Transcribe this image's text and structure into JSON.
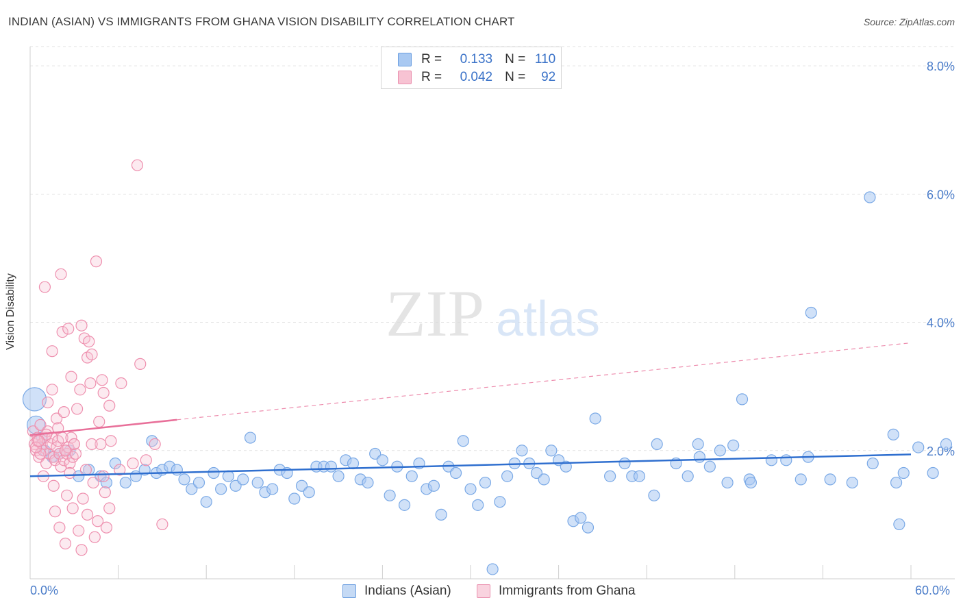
{
  "title": "INDIAN (ASIAN) VS IMMIGRANTS FROM GHANA VISION DISABILITY CORRELATION CHART",
  "source": "Source: ZipAtlas.com",
  "watermark": {
    "zip": "ZIP",
    "atlas": "atlas"
  },
  "legend": {
    "r_key": "R =",
    "n_key": "N =",
    "rows": [
      {
        "r": "0.133",
        "n": "110",
        "color": "#a9c9f2",
        "border": "#6b9ee0"
      },
      {
        "r": "0.042",
        "n": "92",
        "color": "#f7c3d3",
        "border": "#ea8fae"
      }
    ]
  },
  "bottom_legend": {
    "items": [
      {
        "label": "Indians (Asian)",
        "color": "#c5daf5",
        "border": "#6b9ee0"
      },
      {
        "label": "Immigrants from Ghana",
        "color": "#f9d3df",
        "border": "#ea8fae"
      }
    ]
  },
  "chart_data": {
    "type": "scatter",
    "title": "INDIAN (ASIAN) VS IMMIGRANTS FROM GHANA VISION DISABILITY CORRELATION CHART",
    "xlabel": "",
    "ylabel": "Vision Disability",
    "xlim": [
      0,
      60
    ],
    "ylim": [
      0,
      8.3
    ],
    "x_tick_labels": [
      "0.0%",
      "60.0%"
    ],
    "y_ticks": [
      2,
      4,
      6,
      8
    ],
    "y_tick_labels": [
      "2.0%",
      "4.0%",
      "6.0%",
      "8.0%"
    ],
    "grid": true,
    "legend_position": "top-center",
    "series": [
      {
        "name": "Indians (Asian)",
        "color": "#7aa9e6",
        "trend": {
          "x0": 0,
          "y0": 1.6,
          "x1": 60,
          "y1": 1.94,
          "color": "#2f6fcf"
        },
        "points": [
          [
            0.3,
            2.8
          ],
          [
            0.4,
            2.4
          ],
          [
            0.8,
            2.2
          ],
          [
            1.0,
            2.0
          ],
          [
            1.5,
            1.9
          ],
          [
            2.0,
            1.95
          ],
          [
            2.7,
            2.0
          ],
          [
            3.3,
            1.6
          ],
          [
            4.0,
            1.7
          ],
          [
            4.8,
            1.6
          ],
          [
            5.2,
            1.5
          ],
          [
            5.8,
            1.8
          ],
          [
            6.5,
            1.5
          ],
          [
            7.2,
            1.6
          ],
          [
            7.8,
            1.7
          ],
          [
            8.3,
            2.15
          ],
          [
            8.6,
            1.65
          ],
          [
            9.0,
            1.7
          ],
          [
            9.5,
            1.75
          ],
          [
            10.0,
            1.7
          ],
          [
            10.5,
            1.55
          ],
          [
            11.0,
            1.4
          ],
          [
            11.5,
            1.5
          ],
          [
            12.0,
            1.2
          ],
          [
            12.5,
            1.65
          ],
          [
            13.0,
            1.4
          ],
          [
            13.5,
            1.6
          ],
          [
            14.0,
            1.45
          ],
          [
            14.5,
            1.55
          ],
          [
            15.0,
            2.2
          ],
          [
            15.5,
            1.5
          ],
          [
            16.0,
            1.35
          ],
          [
            16.5,
            1.4
          ],
          [
            17.0,
            1.7
          ],
          [
            17.5,
            1.65
          ],
          [
            18.0,
            1.25
          ],
          [
            18.5,
            1.45
          ],
          [
            19.0,
            1.35
          ],
          [
            19.5,
            1.75
          ],
          [
            20.0,
            1.75
          ],
          [
            20.5,
            1.75
          ],
          [
            21.0,
            1.6
          ],
          [
            21.5,
            1.85
          ],
          [
            22.0,
            1.8
          ],
          [
            22.5,
            1.55
          ],
          [
            23.0,
            1.5
          ],
          [
            23.5,
            1.95
          ],
          [
            24.0,
            1.85
          ],
          [
            24.5,
            1.3
          ],
          [
            25.0,
            1.75
          ],
          [
            25.5,
            1.15
          ],
          [
            26.0,
            1.6
          ],
          [
            26.5,
            1.8
          ],
          [
            27.0,
            1.4
          ],
          [
            27.5,
            1.45
          ],
          [
            28.0,
            1.0
          ],
          [
            28.5,
            1.75
          ],
          [
            29.0,
            1.65
          ],
          [
            29.5,
            2.15
          ],
          [
            30.0,
            1.4
          ],
          [
            30.5,
            1.15
          ],
          [
            31.0,
            1.5
          ],
          [
            31.5,
            0.15
          ],
          [
            32.0,
            1.2
          ],
          [
            32.5,
            1.6
          ],
          [
            33.0,
            1.8
          ],
          [
            33.5,
            2.0
          ],
          [
            34.0,
            1.8
          ],
          [
            34.5,
            1.65
          ],
          [
            35.0,
            1.55
          ],
          [
            35.5,
            2.0
          ],
          [
            36.0,
            1.85
          ],
          [
            36.5,
            1.75
          ],
          [
            37.0,
            0.9
          ],
          [
            37.5,
            0.95
          ],
          [
            38.0,
            0.8
          ],
          [
            38.5,
            2.5
          ],
          [
            39.5,
            1.6
          ],
          [
            40.5,
            1.8
          ],
          [
            41.0,
            1.6
          ],
          [
            41.5,
            1.6
          ],
          [
            42.5,
            1.3
          ],
          [
            42.7,
            2.1
          ],
          [
            44.0,
            1.8
          ],
          [
            44.8,
            1.6
          ],
          [
            45.5,
            2.1
          ],
          [
            45.6,
            1.9
          ],
          [
            46.3,
            1.75
          ],
          [
            47.0,
            2.0
          ],
          [
            47.5,
            1.5
          ],
          [
            47.9,
            2.08
          ],
          [
            48.5,
            2.8
          ],
          [
            49.0,
            1.55
          ],
          [
            49.1,
            1.5
          ],
          [
            50.5,
            1.85
          ],
          [
            51.5,
            1.85
          ],
          [
            52.5,
            1.55
          ],
          [
            53.0,
            1.9
          ],
          [
            53.2,
            4.15
          ],
          [
            54.5,
            1.55
          ],
          [
            56.0,
            1.5
          ],
          [
            57.2,
            5.95
          ],
          [
            57.4,
            1.8
          ],
          [
            58.8,
            2.25
          ],
          [
            59.0,
            1.5
          ],
          [
            59.2,
            0.85
          ],
          [
            59.5,
            1.65
          ],
          [
            60.5,
            2.05
          ],
          [
            61.5,
            1.65
          ],
          [
            62.5,
            2.1
          ]
        ]
      },
      {
        "name": "Immigrants from Ghana",
        "color": "#ee8fae",
        "trend": {
          "x0": 0,
          "y0": 2.24,
          "x1": 10,
          "y1": 2.48,
          "color": "#e86f99"
        },
        "points": [
          [
            0.2,
            2.3
          ],
          [
            0.3,
            2.1
          ],
          [
            0.4,
            2.0
          ],
          [
            0.5,
            2.2
          ],
          [
            0.6,
            1.9
          ],
          [
            0.7,
            2.4
          ],
          [
            0.8,
            2.1
          ],
          [
            0.9,
            2.0
          ],
          [
            1.0,
            2.2
          ],
          [
            1.1,
            1.8
          ],
          [
            1.2,
            2.3
          ],
          [
            1.3,
            1.95
          ],
          [
            1.4,
            2.1
          ],
          [
            1.5,
            2.2
          ],
          [
            1.6,
            1.9
          ],
          [
            1.7,
            1.85
          ],
          [
            1.8,
            2.05
          ],
          [
            1.9,
            2.15
          ],
          [
            2.0,
            1.95
          ],
          [
            2.1,
            1.75
          ],
          [
            2.2,
            2.2
          ],
          [
            2.3,
            1.85
          ],
          [
            2.4,
            2.0
          ],
          [
            2.5,
            1.95
          ],
          [
            2.6,
            2.05
          ],
          [
            2.7,
            1.8
          ],
          [
            2.8,
            2.2
          ],
          [
            2.9,
            1.9
          ],
          [
            3.0,
            2.1
          ],
          [
            3.1,
            1.95
          ],
          [
            1.0,
            4.55
          ],
          [
            1.5,
            3.55
          ],
          [
            2.2,
            3.85
          ],
          [
            2.6,
            3.9
          ],
          [
            3.5,
            3.95
          ],
          [
            3.7,
            3.75
          ],
          [
            3.9,
            3.45
          ],
          [
            4.0,
            3.7
          ],
          [
            4.2,
            3.5
          ],
          [
            4.5,
            4.95
          ],
          [
            2.1,
            4.75
          ],
          [
            1.5,
            2.95
          ],
          [
            2.8,
            3.15
          ],
          [
            3.4,
            2.95
          ],
          [
            4.1,
            3.05
          ],
          [
            4.9,
            3.1
          ],
          [
            5.4,
            2.7
          ],
          [
            6.2,
            3.05
          ],
          [
            7.5,
            3.35
          ],
          [
            5.0,
            2.9
          ],
          [
            1.2,
            2.75
          ],
          [
            1.8,
            2.5
          ],
          [
            2.3,
            2.6
          ],
          [
            3.2,
            2.65
          ],
          [
            4.7,
            2.45
          ],
          [
            0.9,
            1.6
          ],
          [
            1.6,
            1.45
          ],
          [
            2.5,
            1.3
          ],
          [
            3.6,
            1.25
          ],
          [
            4.3,
            1.5
          ],
          [
            5.1,
            1.35
          ],
          [
            1.7,
            1.05
          ],
          [
            2.9,
            1.1
          ],
          [
            3.9,
            1.0
          ],
          [
            4.6,
            0.9
          ],
          [
            2.0,
            0.8
          ],
          [
            3.3,
            0.75
          ],
          [
            2.4,
            0.55
          ],
          [
            3.5,
            0.45
          ],
          [
            4.4,
            0.65
          ],
          [
            5.2,
            0.8
          ],
          [
            5.4,
            1.1
          ],
          [
            6.1,
            1.7
          ],
          [
            7.0,
            1.8
          ],
          [
            7.9,
            1.85
          ],
          [
            8.5,
            2.1
          ],
          [
            5.5,
            2.15
          ],
          [
            4.8,
            2.1
          ],
          [
            3.8,
            1.7
          ],
          [
            2.7,
            1.65
          ],
          [
            9.0,
            0.85
          ],
          [
            7.3,
            6.45
          ],
          [
            1.9,
            2.35
          ],
          [
            0.5,
            2.15
          ],
          [
            0.7,
            1.95
          ],
          [
            1.1,
            2.25
          ],
          [
            2.4,
            2.0
          ],
          [
            3.0,
            2.1
          ],
          [
            4.2,
            2.1
          ],
          [
            5.0,
            1.6
          ],
          [
            0.4,
            2.05
          ],
          [
            0.6,
            2.15
          ]
        ]
      }
    ]
  }
}
